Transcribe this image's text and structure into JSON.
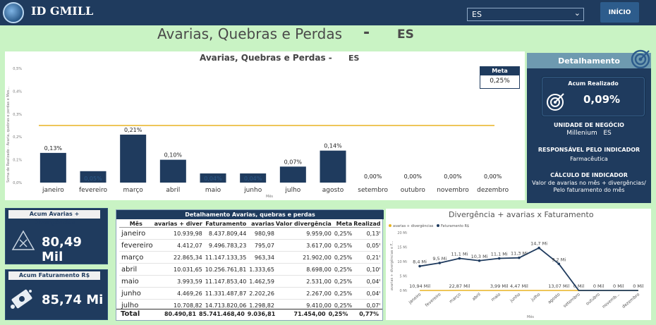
{
  "header": {
    "app_name": "ID GMILL",
    "region_select_value": "ES",
    "home_button": "INÍCIO"
  },
  "page": {
    "title": "Avarias, Quebras e Perdas",
    "dash": "-",
    "region": "ES"
  },
  "main_chart": {
    "title": "Avarias, Quebras e Perdas -",
    "region": "ES",
    "meta_label": "Meta",
    "meta_value": "0,25%"
  },
  "detail": {
    "title": "Detalhamento",
    "acum_label": "Acum Realizado",
    "acum_value": "0,09%",
    "unidade_label": "UNIDADE DE NEGÓCIO",
    "unidade_value": "Millenium",
    "unidade_region": "ES",
    "responsavel_label": "RESPONSÁVEL PELO INDICADOR",
    "responsavel_value": "Farmacêutica",
    "calculo_label": "CÁLCULO DE INDICADOR",
    "calculo_value": "Valor de avarias no mês + divergências/ Pelo faturamento do mês"
  },
  "kpis": {
    "avarias_label": "Acum Avarias + Divergências",
    "avarias_value": "80,49 Mil",
    "fat_label": "Acum Faturamento R$",
    "fat_value": "85,74 Mi"
  },
  "table": {
    "title": "Detalhamento Avarias, quebras e perdas",
    "columns": [
      "Mês",
      "avarias + diver",
      "Faturamento",
      "avarias",
      "Valor divergência",
      "Meta",
      "Realizado"
    ],
    "rows": [
      [
        "janeiro",
        "10.939,98",
        "8.437.809,44",
        "980,98",
        "9.959,00",
        "0,25%",
        "0,13%"
      ],
      [
        "fevereiro",
        "4.412,07",
        "9.496.783,23",
        "795,07",
        "3.617,00",
        "0,25%",
        "0,05%"
      ],
      [
        "março",
        "22.865,34",
        "11.147.133,35",
        "963,34",
        "21.902,00",
        "0,25%",
        "0,21%"
      ],
      [
        "abril",
        "10.031,65",
        "10.256.761,81",
        "1.333,65",
        "8.698,00",
        "0,25%",
        "0,10%"
      ],
      [
        "maio",
        "3.993,59",
        "11.147.853,40",
        "1.462,59",
        "2.531,00",
        "0,25%",
        "0,04%"
      ],
      [
        "junho",
        "4.469,26",
        "11.331.487,87",
        "2.202,26",
        "2.267,00",
        "0,25%",
        "0,04%"
      ],
      [
        "julho",
        "10.708,82",
        "14.713.820,06",
        "1.298,82",
        "9.410,00",
        "0,25%",
        "0,07%"
      ]
    ],
    "total": [
      "Total",
      "80.490,81",
      "85.741.468,40",
      "9.036,81",
      "71.454,00",
      "0,25%",
      "0,77%"
    ]
  },
  "chart_data": [
    {
      "type": "bar",
      "title": "Avarias, Quebras e Perdas - ES",
      "xlabel": "Mês",
      "ylabel": "Soma de Realizado - Avaria, quebras e perdas e Mes...",
      "categories": [
        "janeiro",
        "fevereiro",
        "março",
        "abril",
        "maio",
        "junho",
        "julho",
        "agosto",
        "setembro",
        "outubro",
        "novembro",
        "dezembro"
      ],
      "values": [
        0.13,
        0.05,
        0.21,
        0.1,
        0.04,
        0.04,
        0.07,
        0.14,
        0.0,
        0.0,
        0.0,
        0.0
      ],
      "labels": [
        "0,13%",
        "0,05%",
        "0,21%",
        "0,10%",
        "0,04%",
        "0,04%",
        "0,07%",
        "0,14%",
        "0,00%",
        "0,00%",
        "0,00%",
        "0,00%"
      ],
      "meta_line": 0.25,
      "yticks": [
        "0,0%",
        "0,1%",
        "0,2%",
        "0,3%",
        "0,4%",
        "0,5%"
      ],
      "ylim": [
        0,
        0.5
      ],
      "bar_color": "#1f3b5e",
      "line_color": "#e8b422"
    },
    {
      "type": "line",
      "title": "Divergência + avarias x Faturamento",
      "ylabel": "avarias + divergências e F...",
      "xlabel": "Mês",
      "categories": [
        "janeiro",
        "fevereiro",
        "março",
        "abril",
        "maio",
        "junho",
        "julho",
        "agosto",
        "setembro",
        "outubro",
        "novemb...",
        "dezembro"
      ],
      "yticks": [
        "0 Mi",
        "5 Mi",
        "10 Mi",
        "15 Mi",
        "20 Mi"
      ],
      "ylim": [
        0,
        20
      ],
      "series": [
        {
          "name": "avarias + divergências",
          "color": "#e8b422",
          "values": [
            0.01094,
            0.00441,
            0.02287,
            0.01003,
            0.00399,
            0.00447,
            0.01071,
            0.01307,
            0,
            0,
            0,
            0
          ],
          "labels": [
            "10,94 Mil",
            "",
            "22,87 Mil",
            "",
            "3,99 Mil",
            "4,47 Mil",
            "",
            "13,07 Mil",
            "0 Mil",
            "0 Mil",
            "0 Mil",
            "0 Mil"
          ]
        },
        {
          "name": "Faturamento R$",
          "color": "#1f3b5e",
          "values": [
            8.4,
            9.5,
            11.1,
            10.3,
            11.1,
            11.3,
            14.7,
            9.2,
            0,
            0,
            0,
            0
          ],
          "labels": [
            "8,4 Mi",
            "9,5 Mi",
            "11,1 Mi",
            "10,3 Mi",
            "11,1 Mi",
            "11,3 Mi",
            "14,7 Mi",
            "9,2 Mi",
            "",
            "",
            "",
            ""
          ]
        }
      ]
    }
  ]
}
